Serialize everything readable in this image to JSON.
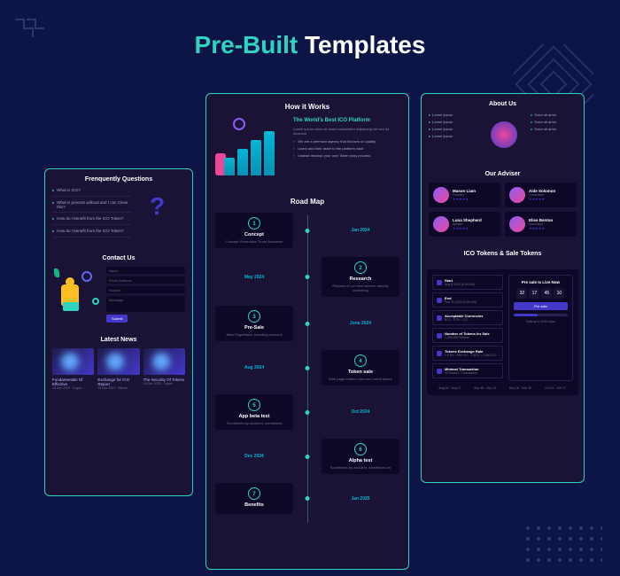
{
  "page": {
    "title": "Pre-Built Templates",
    "title_color_a": "#2dd4bf",
    "title_color_b": "#ffffff",
    "bg_color": "#0d1547"
  },
  "left": {
    "faq_heading": "Frenquently Questions",
    "faq_items": [
      "What is ICO?",
      "What is process without and I can Close this?",
      "How do I benefit from the ICO Token?",
      "How do I benefit from the ICO Token?"
    ],
    "contact_heading": "Contact Us",
    "form": {
      "name": "Name",
      "email": "Email Address",
      "subject": "Subject",
      "message": "Message",
      "submit": "Submit"
    },
    "news_heading": "Latest News",
    "news": [
      {
        "title": "Fundamentals Of Effective",
        "date": "18 Dec 2023 · Crypto"
      },
      {
        "title": "Exchange for ICO Report",
        "date": "19 Dec 2023 · Bitcoin"
      },
      {
        "title": "The Security Of Tokens",
        "date": "20 Dec 2023 · Crypto"
      }
    ]
  },
  "center": {
    "hiw_heading": "How it Works",
    "hiw_subtitle": "The World's Best ICO Platform",
    "hiw_desc": "Lorem ipsum dolor sit amet consectetur adipiscing elit sed do eiusmod",
    "hiw_points": [
      "We are a premium agency that focuses on quality",
      "Users add their asset to the platform vault",
      "Instead develop your own Token easy process"
    ],
    "roadmap_heading": "Road Map",
    "roadmap": [
      {
        "num": "1",
        "title": "Concept",
        "desc": "Concept Generation Team Assemble",
        "date": "Jan 2024"
      },
      {
        "num": "2",
        "title": "Research",
        "desc": "Release of our best internet already marketing",
        "date": "May 2024"
      },
      {
        "num": "3",
        "title": "Pre-Sale",
        "desc": "Alice PageMaker including versions",
        "date": "June 2024"
      },
      {
        "num": "4",
        "title": "Token sale",
        "desc": "Web page editors now use Lorem Ipsum",
        "date": "Aug 2024"
      },
      {
        "num": "5",
        "title": "App beta test",
        "desc": "Sometimes by accident, sometimes",
        "date": "Oct 2024"
      },
      {
        "num": "6",
        "title": "Alpha test",
        "desc": "Sometimes by accident, sometimes on",
        "date": "Dec 2024"
      },
      {
        "num": "7",
        "title": "Benefits",
        "desc": "",
        "date": "Jan 2025"
      }
    ]
  },
  "right": {
    "about_heading": "About Us",
    "about_items": [
      "Lorem ipsum",
      "Lorem ipsum",
      "Lorem ipsum",
      "Lorem ipsum"
    ],
    "about_items2": [
      "Dolor sit amet",
      "Dolor sit amet",
      "Dolor sit amet"
    ],
    "adviser_heading": "Our Adviser",
    "advisers": [
      {
        "name": "Mason Liam",
        "role": "Founder"
      },
      {
        "name": "Aide Solomon",
        "role": "Consultant"
      },
      {
        "name": "Luna Shepherd",
        "role": "Adviser"
      },
      {
        "name": "Elise Benton",
        "role": "Developer"
      }
    ],
    "token_heading": "ICO Tokens & Sale Tokens",
    "token_rows": [
      {
        "label": "Start",
        "val": "Aug 8 2024 (9:00 AM)"
      },
      {
        "label": "End",
        "val": "Feb 10 2024 (9:00 AM)"
      },
      {
        "label": "Acceptable Currencies",
        "val": "BTC · ETH · LTC"
      },
      {
        "label": "Number of Tokens for Sale",
        "val": "1,000,000 Tokens"
      },
      {
        "label": "Tokens Exchange Rate",
        "val": "1 ETH = 650 ICC · 1 BTC = 1940 ICC"
      },
      {
        "label": "Minimal Transaction",
        "val": "10 Tokens / Transaction"
      }
    ],
    "presale": {
      "title": "Pre sale Is Live Now",
      "countdown": [
        "32",
        "17",
        "45",
        "10"
      ],
      "cd_labels": [
        "Days",
        "Hours",
        "Mins",
        "Sec"
      ],
      "btn": "Pre sale",
      "note": "Softcap in 1035 days"
    },
    "timeline": [
      "Aug 02 - Aug 07",
      "Sep 08 - Sep 15",
      "Sep 16 - Sep 30",
      "Oct 01 - Oct 17"
    ]
  },
  "colors": {
    "accent": "#2dd4bf",
    "card_bg": "#1a1336",
    "dark_bg": "#0d0826",
    "primary": "#4338ca"
  }
}
